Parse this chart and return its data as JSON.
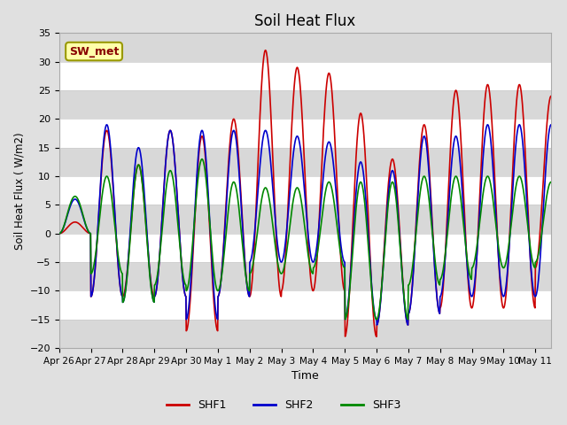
{
  "title": "Soil Heat Flux",
  "xlabel": "Time",
  "ylabel": "Soil Heat Flux ( W/m2)",
  "ylim": [
    -20,
    35
  ],
  "xtick_labels": [
    "Apr 26",
    "Apr 27",
    "Apr 28",
    "Apr 29",
    "Apr 30",
    "May 1",
    "May 2",
    "May 3",
    "May 4",
    "May 5",
    "May 6",
    "May 7",
    "May 8",
    "May 9",
    "May 10",
    "May 11"
  ],
  "xtick_positions": [
    0,
    1,
    2,
    3,
    4,
    5,
    6,
    7,
    8,
    9,
    10,
    11,
    12,
    13,
    14,
    15
  ],
  "shf1_color": "#cc0000",
  "shf2_color": "#0000cc",
  "shf3_color": "#008800",
  "shf1_lw": 1.2,
  "shf2_lw": 1.2,
  "shf3_lw": 1.2,
  "bg_color": "#e0e0e0",
  "plot_bg_color": "#ffffff",
  "stripe_color": "#d8d8d8",
  "legend_items": [
    "SHF1",
    "SHF2",
    "SHF3"
  ],
  "legend_colors": [
    "#cc0000",
    "#0000cc",
    "#008800"
  ],
  "annotation_text": "SW_met",
  "annotation_bg": "#ffffaa",
  "annotation_border": "#999900",
  "title_fontsize": 12,
  "shf1_peaks": [
    2,
    18,
    12,
    18,
    17,
    20,
    32,
    29,
    28,
    21,
    13,
    19,
    25,
    26,
    26,
    24
  ],
  "shf1_troughs": [
    0,
    -11,
    -11,
    -11,
    -17,
    -11,
    -11,
    -10,
    -10,
    -18,
    -16,
    -14,
    -13,
    -13,
    -13,
    -6
  ],
  "shf2_peaks": [
    6,
    19,
    15,
    18,
    18,
    18,
    18,
    17,
    16,
    12.5,
    11,
    17,
    17,
    19,
    19,
    19
  ],
  "shf2_troughs": [
    0,
    -11,
    -12,
    -11,
    -15,
    -11,
    -5,
    -5,
    -5,
    -15,
    -16,
    -14,
    -11,
    -11,
    -11,
    -11
  ],
  "shf3_peaks": [
    6.5,
    10,
    12,
    11,
    13,
    9,
    8,
    8,
    9,
    9,
    9,
    10,
    10,
    10,
    10,
    9
  ],
  "shf3_troughs": [
    0,
    -7,
    -12,
    -9,
    -10,
    -10,
    -7,
    -7,
    -6,
    -15,
    -15,
    -9,
    -8,
    -6,
    -6,
    -5
  ]
}
